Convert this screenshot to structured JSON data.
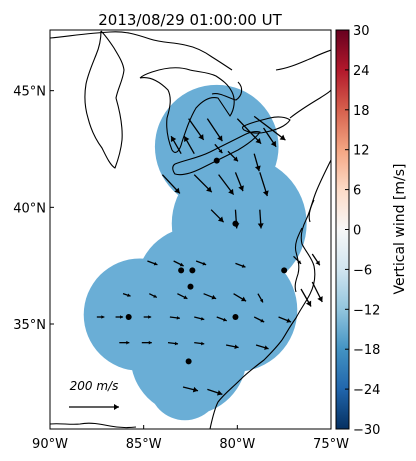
{
  "title": "2013/08/29 01:00:00 UT",
  "map": {
    "lon_range": [
      -90,
      -75
    ],
    "lat_range": [
      30.5,
      47.6
    ],
    "lon_ticks": [
      {
        "v": -90,
        "label": "90°W"
      },
      {
        "v": -85,
        "label": "85°W"
      },
      {
        "v": -80,
        "label": "80°W"
      },
      {
        "v": -75,
        "label": "75°W"
      }
    ],
    "lat_ticks": [
      {
        "v": 35,
        "label": "35°N"
      },
      {
        "v": 40,
        "label": "40°N"
      },
      {
        "v": 45,
        "label": "45°N"
      }
    ],
    "fill_color": "#6aaed6",
    "fill_value_ms": -15,
    "coverage_circles": [
      {
        "name": "coverage-north",
        "lon": -81.1,
        "lat": 42.6,
        "r_deg": 3.3
      },
      {
        "name": "coverage-east",
        "lon": -79.9,
        "lat": 39.3,
        "r_deg": 3.6
      },
      {
        "name": "coverage-center",
        "lon": -82.2,
        "lat": 36.6,
        "r_deg": 3.2
      },
      {
        "name": "coverage-west",
        "lon": -85.2,
        "lat": 35.4,
        "r_deg": 3.0
      },
      {
        "name": "coverage-southeast",
        "lon": -80.1,
        "lat": 35.6,
        "r_deg": 3.3
      },
      {
        "name": "coverage-south",
        "lon": -82.6,
        "lat": 33.6,
        "r_deg": 3.1
      },
      {
        "name": "coverage-south2",
        "lon": -82.8,
        "lat": 32.4,
        "r_deg": 1.9
      }
    ],
    "radar_sites": [
      {
        "lon": -81.1,
        "lat": 42.0
      },
      {
        "lon": -80.1,
        "lat": 39.3
      },
      {
        "lon": -83.0,
        "lat": 37.3
      },
      {
        "lon": -82.4,
        "lat": 37.3
      },
      {
        "lon": -82.5,
        "lat": 36.6
      },
      {
        "lon": -77.5,
        "lat": 37.3
      },
      {
        "lon": -85.8,
        "lat": 35.3
      },
      {
        "lon": -80.1,
        "lat": 35.3
      },
      {
        "lon": -82.6,
        "lat": 33.4
      }
    ],
    "wind_vectors_ms": [
      {
        "lon": -82.6,
        "lat": 43.8,
        "u": 60,
        "v": -85
      },
      {
        "lon": -81.6,
        "lat": 43.8,
        "u": 60,
        "v": -90
      },
      {
        "lon": -80.0,
        "lat": 43.8,
        "u": 95,
        "v": -100
      },
      {
        "lon": -79.1,
        "lat": 43.9,
        "u": 125,
        "v": -95
      },
      {
        "lon": -78.6,
        "lat": 43.4,
        "u": 50,
        "v": -75
      },
      {
        "lon": -83.0,
        "lat": 42.3,
        "u": -40,
        "v": 70
      },
      {
        "lon": -82.3,
        "lat": 42.3,
        "u": -40,
        "v": 70
      },
      {
        "lon": -81.2,
        "lat": 42.7,
        "u": 30,
        "v": -35
      },
      {
        "lon": -80.5,
        "lat": 42.4,
        "u": 40,
        "v": -40
      },
      {
        "lon": -79.1,
        "lat": 42.3,
        "u": 20,
        "v": -70
      },
      {
        "lon": -84.0,
        "lat": 41.4,
        "u": 70,
        "v": -75
      },
      {
        "lon": -82.3,
        "lat": 41.4,
        "u": 70,
        "v": -70
      },
      {
        "lon": -81.0,
        "lat": 41.4,
        "u": 60,
        "v": -80
      },
      {
        "lon": -80.1,
        "lat": 41.5,
        "u": 30,
        "v": -75
      },
      {
        "lon": -78.8,
        "lat": 41.5,
        "u": 30,
        "v": -95
      },
      {
        "lon": -81.4,
        "lat": 39.9,
        "u": 50,
        "v": -50
      },
      {
        "lon": -80.1,
        "lat": 39.9,
        "u": 5,
        "v": -75
      },
      {
        "lon": -78.8,
        "lat": 39.9,
        "u": 5,
        "v": -75
      },
      {
        "lon": -84.8,
        "lat": 37.7,
        "u": 40,
        "v": -15
      },
      {
        "lon": -83.4,
        "lat": 37.7,
        "u": 40,
        "v": -20
      },
      {
        "lon": -82.2,
        "lat": 37.7,
        "u": 40,
        "v": -15
      },
      {
        "lon": -80.1,
        "lat": 37.6,
        "u": 40,
        "v": -15
      },
      {
        "lon": -77.0,
        "lat": 37.9,
        "u": 30,
        "v": -30
      },
      {
        "lon": -76.0,
        "lat": 38.0,
        "u": 30,
        "v": -45
      },
      {
        "lon": -86.1,
        "lat": 36.3,
        "u": 30,
        "v": -10
      },
      {
        "lon": -84.7,
        "lat": 36.3,
        "u": 30,
        "v": -15
      },
      {
        "lon": -83.2,
        "lat": 36.3,
        "u": 40,
        "v": -20
      },
      {
        "lon": -81.8,
        "lat": 36.3,
        "u": 50,
        "v": -20
      },
      {
        "lon": -80.2,
        "lat": 36.3,
        "u": 50,
        "v": -30
      },
      {
        "lon": -78.9,
        "lat": 36.3,
        "u": 20,
        "v": -35
      },
      {
        "lon": -76.6,
        "lat": 36.5,
        "u": 40,
        "v": -70
      },
      {
        "lon": -76.0,
        "lat": 36.8,
        "u": 40,
        "v": -80
      },
      {
        "lon": -87.5,
        "lat": 35.3,
        "u": 30,
        "v": 0
      },
      {
        "lon": -86.5,
        "lat": 35.3,
        "u": 30,
        "v": 0
      },
      {
        "lon": -85.0,
        "lat": 35.3,
        "u": 30,
        "v": 0
      },
      {
        "lon": -83.6,
        "lat": 35.3,
        "u": 40,
        "v": -5
      },
      {
        "lon": -82.3,
        "lat": 35.3,
        "u": 40,
        "v": -10
      },
      {
        "lon": -81.1,
        "lat": 35.3,
        "u": 40,
        "v": -15
      },
      {
        "lon": -79.1,
        "lat": 35.3,
        "u": 40,
        "v": -20
      },
      {
        "lon": -77.8,
        "lat": 35.3,
        "u": 50,
        "v": -20
      },
      {
        "lon": -86.3,
        "lat": 34.2,
        "u": 40,
        "v": 0
      },
      {
        "lon": -85.1,
        "lat": 34.2,
        "u": 40,
        "v": 0
      },
      {
        "lon": -83.7,
        "lat": 34.2,
        "u": 40,
        "v": -5
      },
      {
        "lon": -82.3,
        "lat": 34.2,
        "u": 40,
        "v": -5
      },
      {
        "lon": -80.6,
        "lat": 34.1,
        "u": 50,
        "v": -10
      },
      {
        "lon": -79.0,
        "lat": 34.1,
        "u": 50,
        "v": -15
      },
      {
        "lon": -82.9,
        "lat": 32.3,
        "u": 60,
        "v": -15
      },
      {
        "lon": -81.6,
        "lat": 32.2,
        "u": 60,
        "v": -20
      }
    ],
    "scale_label": "200 m/s",
    "scale_ms": 200
  },
  "colorbar": {
    "label": "Vertical wind [m/s]",
    "min": -30,
    "max": 30,
    "ticks": [
      "30",
      "24",
      "18",
      "12",
      "6",
      "0",
      "−6",
      "−12",
      "−18",
      "−24",
      "−30"
    ],
    "colors": [
      "#053061",
      "#2166ac",
      "#4393c3",
      "#92c5de",
      "#d1e5f0",
      "#f7f7f7",
      "#fddbc7",
      "#f4a582",
      "#d6604d",
      "#b2182b",
      "#67001f"
    ]
  }
}
